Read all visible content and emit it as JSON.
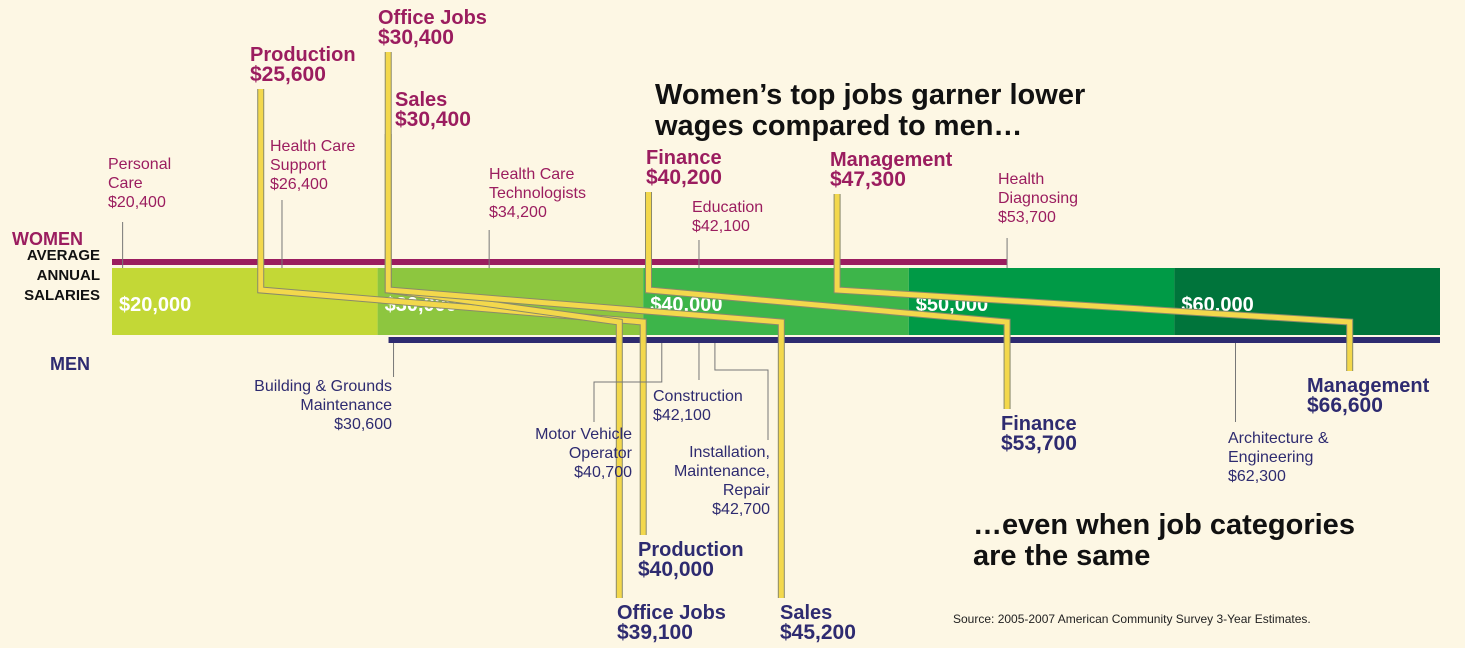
{
  "chart_data": {
    "type": "salary-scale",
    "title": "Women’s top jobs garner lower wages compared to men…",
    "subtitle": "…even when job categories are the same",
    "axis_label": "AVERAGE ANNUAL SALARIES",
    "source": "Source: 2005-2007 American Community Survey 3-Year Estimates.",
    "xlim": [
      20000,
      70000
    ],
    "xticks": [
      {
        "value": 20000,
        "label": "$20,000"
      },
      {
        "value": 30000,
        "label": "$30,000"
      },
      {
        "value": 40000,
        "label": "$40,000"
      },
      {
        "value": 50000,
        "label": "$50,000"
      },
      {
        "value": 60000,
        "label": "$60,000"
      }
    ],
    "band_colors": [
      "#c3d836",
      "#8dc63f",
      "#3db54a",
      "#009a46",
      "#00743b"
    ],
    "highlight_color": "#f3d84c",
    "series": [
      {
        "name": "WOMEN",
        "color": "#9b1d5f",
        "categories": [
          "Personal Care",
          "Production",
          "Health Care Support",
          "Office Jobs",
          "Sales",
          "Health Care Technologists",
          "Finance",
          "Education",
          "Management",
          "Health Diagnosing"
        ],
        "values": [
          20400,
          25600,
          26400,
          30400,
          30400,
          34200,
          40200,
          42100,
          47300,
          53700
        ],
        "value_labels": [
          "$20,400",
          "$25,600",
          "$26,400",
          "$30,400",
          "$30,400",
          "$34,200",
          "$40,200",
          "$42,100",
          "$47,300",
          "$53,700"
        ]
      },
      {
        "name": "MEN",
        "color": "#2e2b70",
        "categories": [
          "Building & Grounds Maintenance",
          "Production",
          "Office Jobs",
          "Motor Vehicle Operator",
          "Construction",
          "Installation, Maintenance, Repair",
          "Sales",
          "Finance",
          "Architecture & Engineering",
          "Management"
        ],
        "values": [
          30600,
          40000,
          39100,
          40700,
          42100,
          42700,
          45200,
          53700,
          62300,
          66600
        ],
        "value_labels": [
          "$30,600",
          "$40,000",
          "$39,100",
          "$40,700",
          "$42,100",
          "$42,700",
          "$45,200",
          "$53,700",
          "$62,300",
          "$66,600"
        ]
      }
    ]
  }
}
